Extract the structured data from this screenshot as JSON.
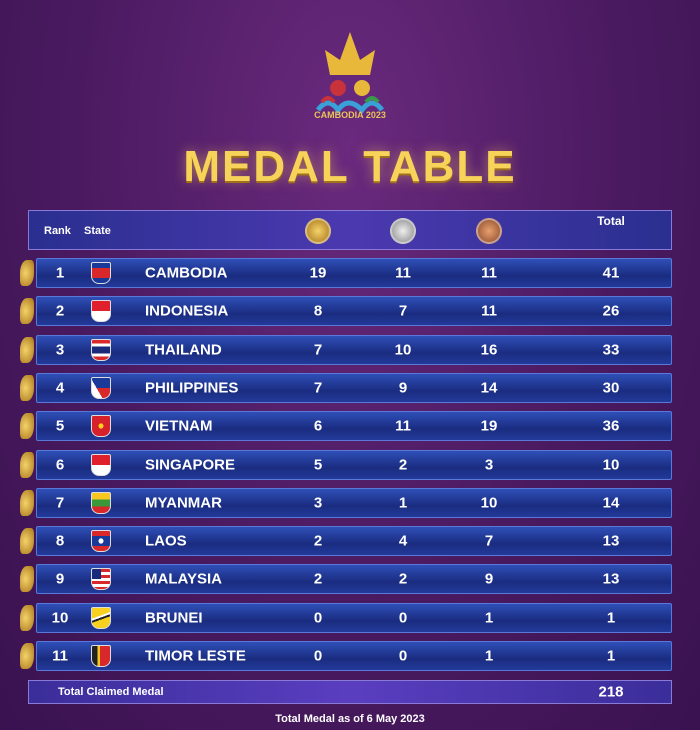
{
  "logo": {
    "text": "CAMBODIA 2023"
  },
  "title": "MEDAL TABLE",
  "table": {
    "columns": [
      "Rank",
      "State",
      "Total"
    ],
    "rows": [
      [
        "1",
        "CAMBODIA",
        "19",
        "11",
        "11",
        "41"
      ],
      [
        "2",
        "INDONESIA",
        "8",
        "7",
        "11",
        "26"
      ],
      [
        "3",
        "THAILAND",
        "7",
        "10",
        "16",
        "33"
      ],
      [
        "4",
        "PHILIPPINES",
        "7",
        "9",
        "14",
        "30"
      ],
      [
        "5",
        "VIETNAM",
        "6",
        "11",
        "19",
        "36"
      ],
      [
        "6",
        "SINGAPORE",
        "5",
        "2",
        "3",
        "10"
      ],
      [
        "7",
        "MYANMAR",
        "3",
        "1",
        "10",
        "14"
      ],
      [
        "8",
        "LAOS",
        "2",
        "4",
        "7",
        "13"
      ],
      [
        "9",
        "MALAYSIA",
        "2",
        "2",
        "9",
        "13"
      ],
      [
        "10",
        "BRUNEI",
        "0",
        "0",
        "1",
        "1"
      ],
      [
        "11",
        "TIMOR LESTE",
        "0",
        "0",
        "1",
        "1"
      ]
    ],
    "footer": {
      "label": "Total Claimed Medal",
      "total": "218"
    }
  },
  "note": "Total Medal as of 6 May 2023"
}
